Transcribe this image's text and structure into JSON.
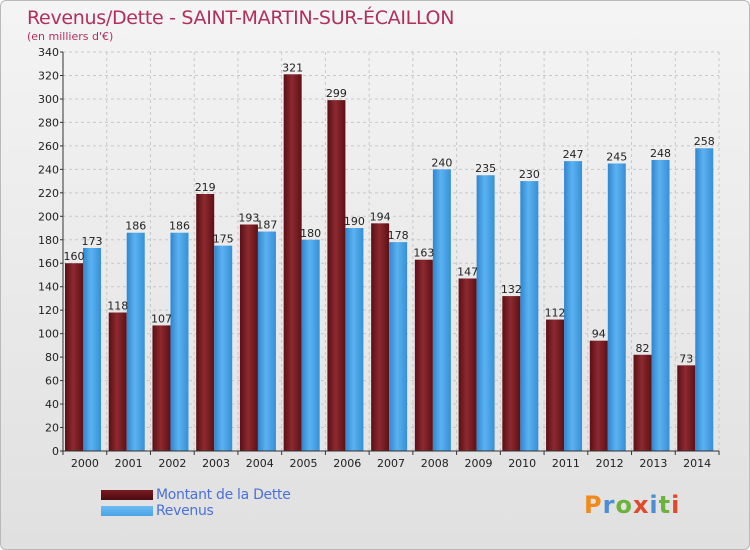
{
  "header": {
    "title": "Revenus/Dette - SAINT-MARTIN-SUR-ÉCAILLON",
    "subtitle": "(en milliers d'€)"
  },
  "colors": {
    "dette": "#7a1a1f",
    "revenus": "#4aa3e6"
  },
  "logo": {
    "text": "Proxiti",
    "letters": [
      {
        "ch": "P",
        "color": "#f08a1c"
      },
      {
        "ch": "r",
        "color": "#4a8fd6"
      },
      {
        "ch": "o",
        "color": "#6bb33c"
      },
      {
        "ch": "x",
        "color": "#e04a2a"
      },
      {
        "ch": "i",
        "color": "#4a8fd6"
      },
      {
        "ch": "t",
        "color": "#6bb33c"
      },
      {
        "ch": "i",
        "color": "#e04a2a"
      }
    ]
  },
  "chart_data": {
    "type": "bar",
    "title": "Revenus/Dette - SAINT-MARTIN-SUR-ÉCAILLON",
    "subtitle": "(en milliers d'€)",
    "categories": [
      "2000",
      "2001",
      "2002",
      "2003",
      "2004",
      "2005",
      "2006",
      "2007",
      "2008",
      "2009",
      "2010",
      "2011",
      "2012",
      "2013",
      "2014"
    ],
    "series": [
      {
        "name": "Montant de la Dette",
        "values": [
          160,
          118,
          107,
          219,
          193,
          321,
          299,
          194,
          163,
          147,
          132,
          112,
          94,
          82,
          73
        ]
      },
      {
        "name": "Revenus",
        "values": [
          173,
          186,
          186,
          175,
          187,
          180,
          190,
          178,
          240,
          235,
          230,
          247,
          245,
          248,
          258
        ]
      }
    ],
    "ylim": [
      0,
      340
    ],
    "yticks": [
      0,
      20,
      40,
      60,
      80,
      100,
      120,
      140,
      160,
      180,
      200,
      220,
      240,
      260,
      280,
      300,
      320,
      340
    ],
    "grid": true,
    "legend": "bottom-left"
  }
}
